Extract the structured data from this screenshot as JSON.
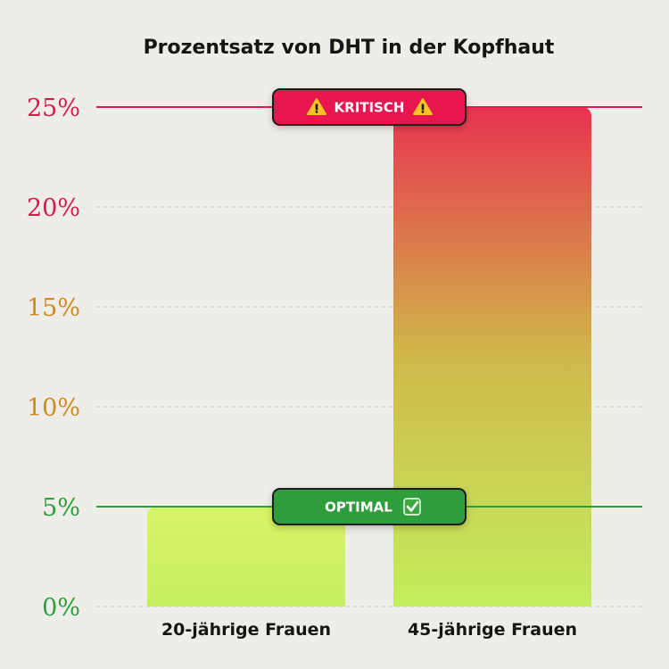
{
  "chart_data": {
    "type": "bar",
    "title": "Prozentsatz von DHT in der Kopfhaut",
    "categories": [
      "20-jährige Frauen",
      "45-jährige Frauen"
    ],
    "values": [
      5,
      25
    ],
    "ylim": [
      0,
      25
    ],
    "y_ticks": [
      0,
      5,
      10,
      15,
      20,
      25
    ],
    "y_tick_labels": [
      "0%",
      "5%",
      "10%",
      "15%",
      "20%",
      "25%"
    ],
    "y_tick_colors": [
      "#2e9e3c",
      "#2e9e3c",
      "#cc8a22",
      "#cc8a22",
      "#d81b4a",
      "#d81b4a"
    ],
    "xlabel": "",
    "ylabel": "",
    "grid": true,
    "reference_lines": [
      {
        "value": 25,
        "label": "KRITISCH",
        "icon": "warning-icon",
        "glyph": "⚠️",
        "color": "#e8184f"
      },
      {
        "value": 5,
        "label": "OPTIMAL",
        "icon": "check-icon",
        "glyph": "✅",
        "color": "#2e9e3c"
      }
    ],
    "colors": {
      "bar_top_high": "#e8334f",
      "bar_mid": "#cfb84a",
      "bar_low": "#c6ec5a",
      "bar_bottom": "#d4f46a",
      "grid": "#c9c7c1",
      "text": "#151515"
    }
  }
}
